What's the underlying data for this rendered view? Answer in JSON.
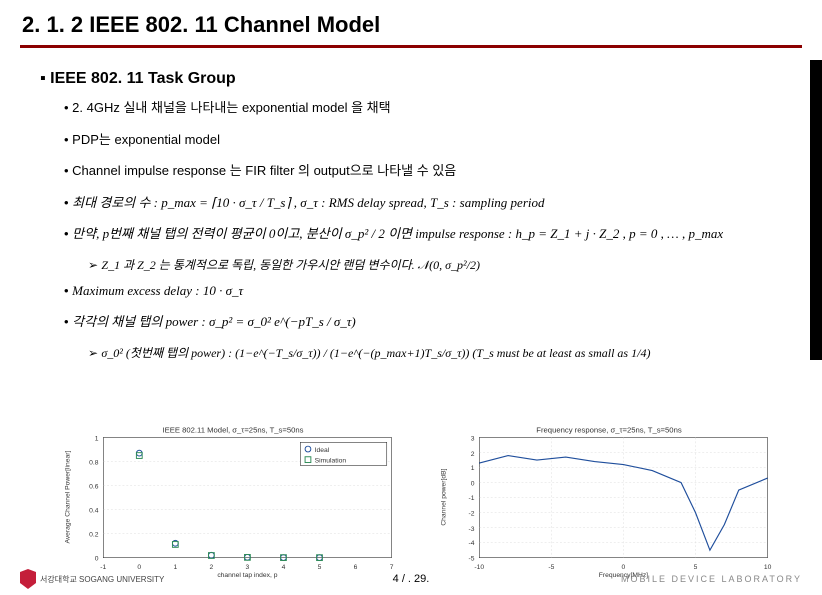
{
  "title": "2. 1. 2 IEEE 802. 11 Channel Model",
  "header_line_color": "#8b0000",
  "main_heading": "IEEE 802. 11 Task Group",
  "bullets": [
    "2. 4GHz 실내 채널을 나타내는 exponential model 을 채택",
    "PDP는 exponential model",
    "Channel impulse response 는 FIR filter 의 output으로 나타낼 수 있음",
    "최대 경로의 수 : p_max = ⌈10 · σ_τ / T_s⌉   ,   σ_τ : RMS delay spread,  T_s : sampling period",
    "만약, p번째 채널 탭의 전력이 평균이 0이고, 분산이 σ_p² / 2 이면 impulse response : h_p = Z_1 + j · Z_2 ,  p = 0 , … , p_max",
    "Maximum excess delay : 10 · σ_τ",
    "각각의 채널 탭의 power : σ_p² = σ_0² e^(−pT_s / σ_τ)"
  ],
  "sub_note_1": "Z_1 과 Z_2 는 통계적으로 독립, 동일한 가우시안 랜덤 변수이다. 𝒩(0, σ_p²/2)",
  "sub_note_2": "σ_0² (첫번째 탭의 power) : (1−e^(−T_s/σ_τ)) / (1−e^(−(p_max+1)T_s/σ_τ))   (T_s must be at least as small as 1/4)",
  "chart1": {
    "title": "IEEE 802.11 Model, σ_τ=25ns, T_s=50ns",
    "xlabel": "channel tap index, p",
    "ylabel": "Average Channel Power[linear]",
    "xlim": [
      -1,
      7
    ],
    "ylim": [
      0,
      1
    ],
    "xticks": [
      -1,
      0,
      1,
      2,
      3,
      4,
      5,
      6,
      7
    ],
    "yticks": [
      0,
      0.2,
      0.4,
      0.6,
      0.8,
      1
    ],
    "legend": [
      "Ideal",
      "Simulation"
    ],
    "ideal": {
      "x": [
        0,
        1,
        2,
        3,
        4,
        5
      ],
      "y": [
        0.87,
        0.12,
        0.02,
        0.003,
        0.0005,
        0.0001
      ]
    },
    "simulation": {
      "x": [
        0,
        1,
        2,
        3,
        4,
        5
      ],
      "y": [
        0.85,
        0.11,
        0.018,
        0.0025,
        0.0004,
        0.0001
      ]
    },
    "marker_colors": [
      "#1f4e9c",
      "#2e8b57"
    ],
    "grid_color": "#dddddd",
    "background_color": "#ffffff"
  },
  "chart2": {
    "title": "Frequency response, σ_τ=25ns, T_s=50ns",
    "xlabel": "Frequency[MHz]",
    "ylabel": "Channel power[dB]",
    "xlim": [
      -10,
      10
    ],
    "ylim": [
      -5,
      3
    ],
    "xticks": [
      -10,
      -5,
      0,
      5,
      10
    ],
    "yticks": [
      -5,
      -4,
      -3,
      -2,
      -1,
      0,
      1,
      2,
      3
    ],
    "line_x": [
      -10,
      -8,
      -6,
      -4,
      -2,
      0,
      2,
      4,
      5,
      6,
      7,
      8,
      10
    ],
    "line_y": [
      1.3,
      1.8,
      1.5,
      1.7,
      1.4,
      1.2,
      0.8,
      0,
      -2,
      -4.5,
      -2.8,
      -0.5,
      0.3
    ],
    "line_color": "#1f4e9c",
    "grid_color": "#dddddd",
    "background_color": "#ffffff"
  },
  "page_number": "4 / . 29.",
  "logo_left_text": "서강대학교 SOGANG UNIVERSITY",
  "logo_right_text": "MOBILE DEVICE LABORATORY"
}
